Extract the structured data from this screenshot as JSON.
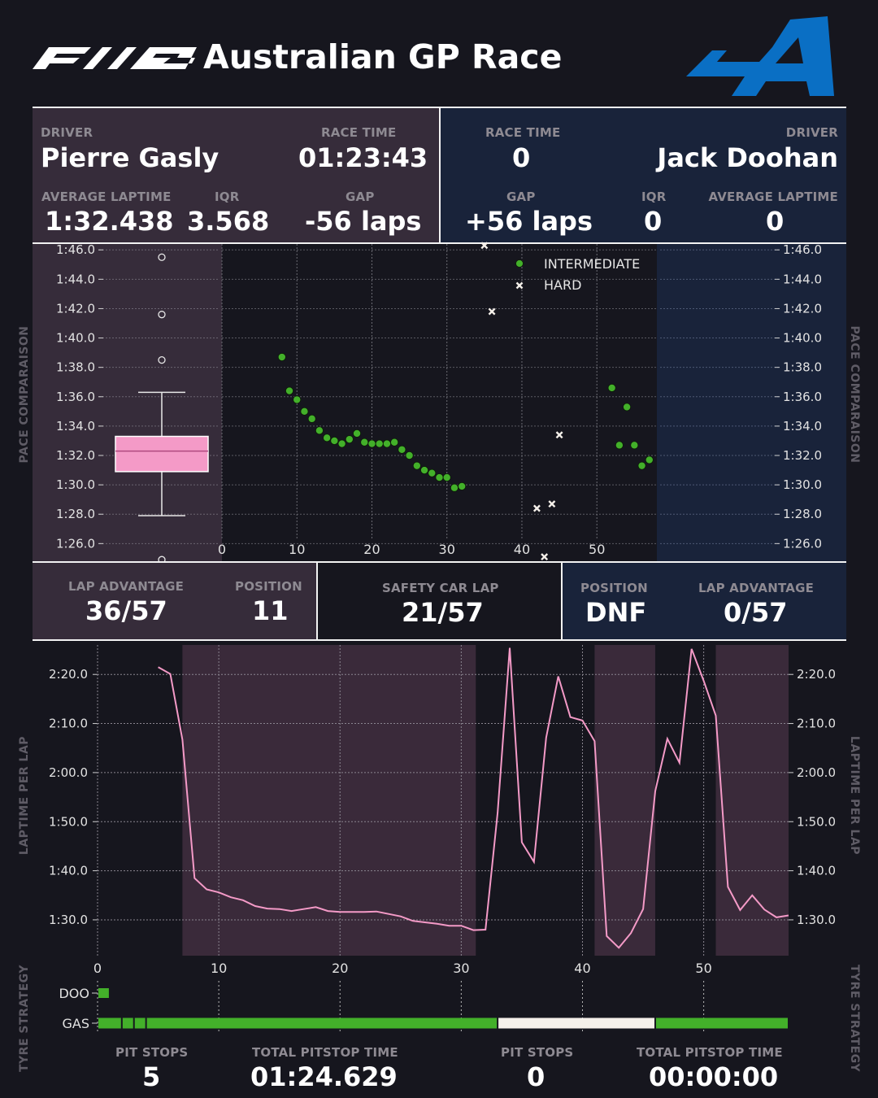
{
  "header": {
    "logo_text": "F1 25",
    "title": "Australian GP Race",
    "team_logo": "alpine-logo",
    "team_color": "#0a6fc4"
  },
  "stats_top": {
    "left": {
      "driver_label": "DRIVER",
      "driver": "Pierre Gasly",
      "race_time_label": "RACE TIME",
      "race_time": "01:23:43",
      "avg_label": "AVERAGE LAPTIME",
      "avg": "1:32.438",
      "iqr_label": "IQR",
      "iqr": "3.568",
      "gap_label": "GAP",
      "gap": "-56 laps"
    },
    "right": {
      "race_time_label": "RACE TIME",
      "race_time": "0",
      "driver_label": "DRIVER",
      "driver": "Jack Doohan",
      "gap_label": "GAP",
      "gap": "+56 laps",
      "iqr_label": "IQR",
      "iqr": "0",
      "avg_label": "AVERAGE LAPTIME",
      "avg": "0"
    }
  },
  "side_labels": {
    "pace": "PACE COMPARAISON",
    "laptime": "LAPTIME PER LAP",
    "tyre": "TYRE STRATEGY"
  },
  "stats_mid": {
    "left": {
      "lap_adv_label": "LAP ADVANTAGE",
      "lap_adv": "36/57",
      "pos_label": "POSITION",
      "pos": "11"
    },
    "center": {
      "sc_label": "SAFETY CAR LAP",
      "sc": "21/57"
    },
    "right": {
      "pos_label": "POSITION",
      "pos": "DNF",
      "lap_adv_label": "LAP ADVANTAGE",
      "lap_adv": "0/57"
    }
  },
  "stats_bottom": {
    "left": {
      "pit_label": "PIT STOPS",
      "pit": "5",
      "total_label": "TOTAL PITSTOP TIME",
      "total": "01:24.629"
    },
    "right": {
      "pit_label": "PIT STOPS",
      "pit": "0",
      "total_label": "TOTAL PITSTOP TIME",
      "total": "00:00:00"
    }
  },
  "colors": {
    "gasly": "#f49ac7",
    "intermediate": "#43b02a",
    "hard": "#f5f0ea",
    "left_panel": "#362c3a",
    "right_panel": "#19233a",
    "sc_band": "#3a2a3a"
  },
  "chart_data": [
    {
      "type": "scatter",
      "name": "pace-comparison",
      "y_tick_labels": [
        "1:46.0",
        "1:44.0",
        "1:42.0",
        "1:40.0",
        "1:38.0",
        "1:36.0",
        "1:34.0",
        "1:32.0",
        "1:30.0",
        "1:28.0",
        "1:26.0"
      ],
      "y_ticks_sec": [
        106,
        104,
        102,
        100,
        98,
        96,
        94,
        92,
        90,
        88,
        86
      ],
      "x_tick_labels": [
        "0",
        "10",
        "20",
        "30",
        "40",
        "50"
      ],
      "x_ticks": [
        0,
        10,
        20,
        30,
        40,
        50
      ],
      "xlim": [
        0,
        58
      ],
      "ylim": [
        84.8,
        106.4
      ],
      "grid": true,
      "legend_position": "top-right",
      "series": [
        {
          "name": "INTERMEDIATE",
          "marker": "circle",
          "points": [
            [
              8,
              98.7
            ],
            [
              9,
              96.4
            ],
            [
              10,
              95.8
            ],
            [
              11,
              95.0
            ],
            [
              12,
              94.5
            ],
            [
              13,
              93.7
            ],
            [
              14,
              93.2
            ],
            [
              15,
              93.0
            ],
            [
              16,
              92.8
            ],
            [
              17,
              93.1
            ],
            [
              18,
              93.5
            ],
            [
              19,
              92.9
            ],
            [
              20,
              92.8
            ],
            [
              21,
              92.8
            ],
            [
              22,
              92.8
            ],
            [
              23,
              92.9
            ],
            [
              24,
              92.4
            ],
            [
              25,
              92.0
            ],
            [
              26,
              91.3
            ],
            [
              27,
              91.0
            ],
            [
              28,
              90.8
            ],
            [
              29,
              90.5
            ],
            [
              30,
              90.5
            ],
            [
              31,
              89.8
            ],
            [
              32,
              89.9
            ],
            [
              52,
              96.6
            ],
            [
              53,
              92.7
            ],
            [
              54,
              95.3
            ],
            [
              55,
              92.7
            ],
            [
              56,
              91.3
            ],
            [
              57,
              91.7
            ]
          ]
        },
        {
          "name": "HARD",
          "marker": "x",
          "points": [
            [
              35,
              106.3
            ],
            [
              36,
              101.8
            ],
            [
              42,
              88.4
            ],
            [
              43,
              85.1
            ],
            [
              44,
              88.7
            ],
            [
              45,
              93.4
            ]
          ]
        }
      ],
      "boxplot": {
        "series": "Gasly",
        "q1": 90.9,
        "median": 92.3,
        "q3": 93.3,
        "whisker_low": 87.9,
        "whisker_high": 96.3,
        "outliers": [
          105.5,
          101.6,
          98.5,
          84.9
        ]
      }
    },
    {
      "type": "line",
      "name": "laptime-per-lap",
      "y_tick_labels": [
        "2:20.0",
        "2:10.0",
        "2:00.0",
        "1:50.0",
        "1:40.0",
        "1:30.0"
      ],
      "y_ticks_sec": [
        140,
        130,
        120,
        110,
        100,
        90
      ],
      "x_tick_labels": [
        "0",
        "10",
        "20",
        "30",
        "40",
        "50"
      ],
      "x_ticks": [
        0,
        10,
        20,
        30,
        40,
        50
      ],
      "xlim": [
        0,
        57
      ],
      "ylim": [
        82.7,
        146.0
      ],
      "grid": true,
      "safety_car_bands": [
        [
          7,
          31.2
        ],
        [
          41,
          46
        ],
        [
          51,
          57
        ]
      ],
      "series": [
        {
          "name": "Gasly",
          "x": [
            5,
            6,
            7,
            8,
            9,
            10,
            11,
            12,
            13,
            14,
            15,
            16,
            17,
            18,
            19,
            20,
            21,
            22,
            23,
            24,
            25,
            26,
            27,
            28,
            29,
            30,
            31,
            32,
            33,
            34,
            35,
            36,
            37,
            38,
            39,
            40,
            41,
            42,
            43,
            44,
            45,
            46,
            47,
            48,
            49,
            50,
            51,
            52,
            53,
            54,
            55,
            56,
            57
          ],
          "y": [
            141.5,
            140.1,
            126.7,
            98.5,
            96.2,
            95.6,
            94.6,
            94.0,
            92.8,
            92.3,
            92.2,
            91.8,
            92.2,
            92.6,
            91.8,
            91.6,
            91.6,
            91.6,
            91.7,
            91.2,
            90.7,
            89.8,
            89.5,
            89.2,
            88.8,
            88.8,
            87.9,
            88.0,
            111.8,
            145.4,
            105.8,
            101.8,
            127.1,
            139.6,
            131.3,
            130.6,
            126.4,
            86.7,
            84.3,
            87.3,
            92.2,
            116.2,
            126.9,
            122.0,
            145.2,
            138.7,
            131.6,
            96.7,
            92.0,
            95.0,
            92.1,
            90.5,
            90.9
          ]
        }
      ]
    },
    {
      "type": "bar",
      "name": "tyre-strategy",
      "drivers": [
        "DOO",
        "GAS"
      ],
      "x_ticks": [
        0,
        10,
        20,
        30,
        40,
        50
      ],
      "xlim": [
        0,
        57
      ],
      "stints": {
        "DOO": [
          {
            "compound": "INTERMEDIATE",
            "from": 0,
            "to": 1
          }
        ],
        "GAS": [
          {
            "compound": "INTERMEDIATE",
            "from": 0,
            "to": 2
          },
          {
            "compound": "INTERMEDIATE",
            "from": 2,
            "to": 3
          },
          {
            "compound": "INTERMEDIATE",
            "from": 3,
            "to": 4
          },
          {
            "compound": "INTERMEDIATE",
            "from": 4,
            "to": 33
          },
          {
            "compound": "HARD",
            "from": 33,
            "to": 46
          },
          {
            "compound": "INTERMEDIATE",
            "from": 46,
            "to": 57
          }
        ]
      }
    }
  ]
}
